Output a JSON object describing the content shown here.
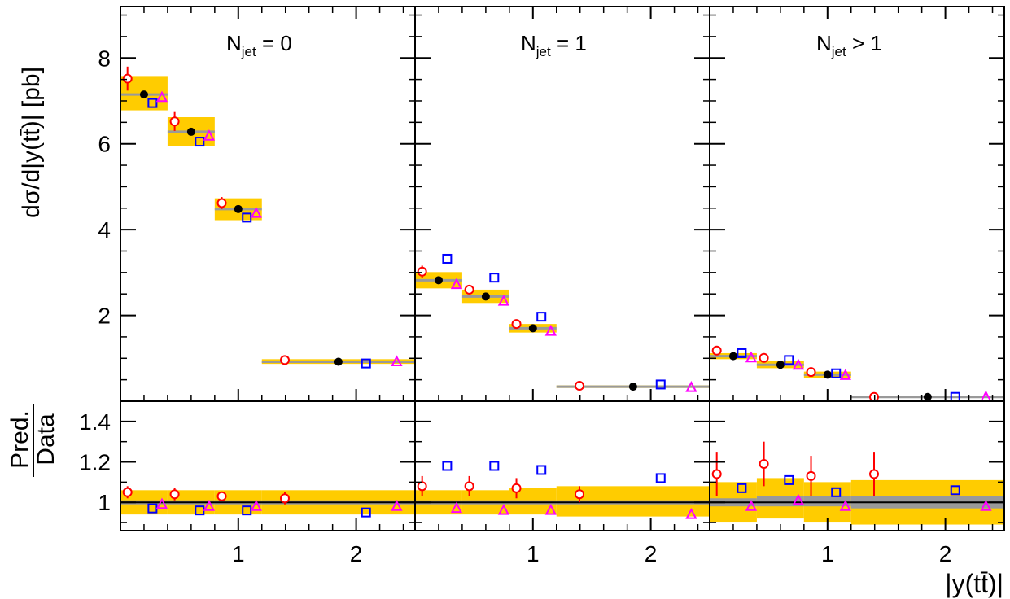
{
  "chart_data": {
    "type": "scatter",
    "xlabel": "|y(tt̄)|",
    "ylabel_top": "dσ/d|y(tt̄)| [pb]",
    "ylabel_ratio_num": "Pred.",
    "ylabel_ratio_den": "Data",
    "top_ylim": [
      0,
      9.2
    ],
    "top_yticks": [
      "2",
      "4",
      "6",
      "8"
    ],
    "ratio_ylim": [
      0.86,
      1.5
    ],
    "ratio_yticks": [
      "1",
      "1.2",
      "1.4"
    ],
    "xlim": [
      0,
      2.5
    ],
    "xticks": [
      "1",
      "2"
    ],
    "bin_edges": [
      0,
      0.4,
      0.8,
      1.2,
      2.5
    ],
    "colors": {
      "data": "#000000",
      "band": "#ffcc00",
      "central_line": "#999999",
      "pred_circle": "#ff0000",
      "pred_square": "#0000ff",
      "pred_triangle": "#ff00ff"
    },
    "panels": [
      {
        "title_main": "N",
        "title_sub": "jet",
        "title_rest": " = 0",
        "data": [
          7.15,
          6.28,
          4.48,
          0.92
        ],
        "band": [
          [
            6.78,
            7.58
          ],
          [
            5.95,
            6.62
          ],
          [
            4.22,
            4.73
          ],
          [
            0.87,
            0.98
          ]
        ],
        "pred_circle": [
          7.52,
          6.52,
          4.62,
          0.96
        ],
        "pred_circle_err": [
          0.28,
          0.22,
          0.14,
          0.04
        ],
        "pred_square": [
          6.95,
          6.05,
          4.28,
          0.88
        ],
        "pred_triangle": [
          7.08,
          6.18,
          4.38,
          0.92
        ],
        "ratio_band": [
          [
            0.94,
            1.06
          ],
          [
            0.94,
            1.06
          ],
          [
            0.94,
            1.06
          ],
          [
            0.94,
            1.06
          ]
        ],
        "ratio_gray": [
          [
            0.99,
            1.01
          ],
          [
            0.99,
            1.01
          ],
          [
            0.99,
            1.01
          ],
          [
            0.99,
            1.01
          ]
        ],
        "ratio_circle": [
          1.05,
          1.04,
          1.03,
          1.02
        ],
        "ratio_circle_err": [
          0.03,
          0.03,
          0.02,
          0.03
        ],
        "ratio_square": [
          0.97,
          0.96,
          0.96,
          0.95
        ],
        "ratio_triangle": [
          0.99,
          0.98,
          0.98,
          0.98
        ]
      },
      {
        "title_main": "N",
        "title_sub": "jet",
        "title_rest": " = 1",
        "data": [
          2.82,
          2.44,
          1.7,
          0.34
        ],
        "band": [
          [
            2.63,
            3.01
          ],
          [
            2.29,
            2.6
          ],
          [
            1.6,
            1.8
          ],
          [
            0.31,
            0.37
          ]
        ],
        "pred_circle": [
          3.02,
          2.6,
          1.8,
          0.36
        ],
        "pred_circle_err": [
          0.14,
          0.11,
          0.06,
          0.03
        ],
        "pred_square": [
          3.32,
          2.88,
          1.97,
          0.39
        ],
        "pred_triangle": [
          2.72,
          2.33,
          1.63,
          0.32
        ],
        "ratio_band": [
          [
            0.94,
            1.06
          ],
          [
            0.94,
            1.06
          ],
          [
            0.94,
            1.07
          ],
          [
            0.93,
            1.08
          ]
        ],
        "ratio_gray": [
          [
            0.99,
            1.01
          ],
          [
            0.99,
            1.01
          ],
          [
            0.99,
            1.01
          ],
          [
            0.99,
            1.01
          ]
        ],
        "ratio_circle": [
          1.08,
          1.08,
          1.07,
          1.04
        ],
        "ratio_circle_err": [
          0.05,
          0.05,
          0.05,
          0.04
        ],
        "ratio_square": [
          1.18,
          1.18,
          1.16,
          1.12
        ],
        "ratio_triangle": [
          0.97,
          0.96,
          0.96,
          0.94
        ]
      },
      {
        "title_main": "N",
        "title_sub": "jet",
        "title_rest": " > 1",
        "data": [
          1.05,
          0.85,
          0.62,
          0.1
        ],
        "band": [
          [
            0.98,
            1.12
          ],
          [
            0.77,
            0.93
          ],
          [
            0.55,
            0.69
          ],
          [
            0.08,
            0.12
          ]
        ],
        "pred_circle": [
          1.18,
          1.01,
          0.68,
          0.1
        ],
        "pred_circle_err": [
          0.08,
          0.05,
          0.04,
          0.02
        ],
        "pred_square": [
          1.12,
          0.96,
          0.65,
          0.1
        ],
        "pred_triangle": [
          1.01,
          0.84,
          0.6,
          0.1
        ]
      }
    ],
    "panel3_ratio": {
      "ratio_band": [
        [
          0.9,
          1.1
        ],
        [
          0.92,
          1.12
        ],
        [
          0.9,
          1.1
        ],
        [
          0.89,
          1.11
        ]
      ],
      "ratio_gray": [
        [
          0.98,
          1.02
        ],
        [
          0.98,
          1.03
        ],
        [
          0.98,
          1.03
        ],
        [
          0.97,
          1.03
        ]
      ],
      "ratio_circle": [
        1.14,
        1.19,
        1.13,
        1.14
      ],
      "ratio_circle_err": [
        0.11,
        0.11,
        0.1,
        0.11
      ],
      "ratio_square": [
        1.07,
        1.11,
        1.05,
        1.06
      ],
      "ratio_triangle": [
        0.98,
        1.01,
        0.98,
        0.98
      ]
    }
  }
}
